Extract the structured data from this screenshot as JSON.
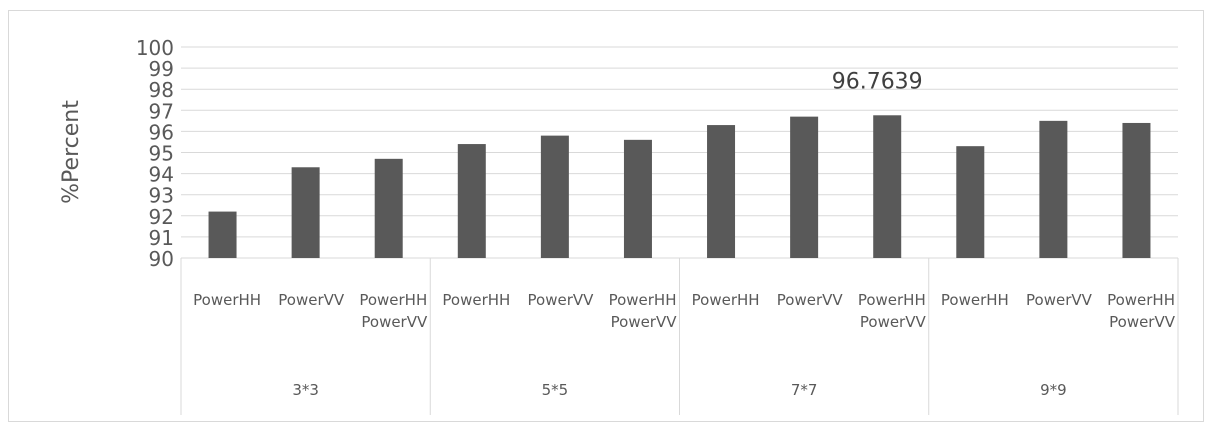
{
  "chart_data": {
    "type": "bar",
    "ylabel": "%Percent",
    "xlabel": "",
    "ylim": [
      90,
      100
    ],
    "yticks": [
      90,
      91,
      92,
      93,
      94,
      95,
      96,
      97,
      98,
      99,
      100
    ],
    "grid": true,
    "groups": [
      {
        "name": "3*3",
        "bars": [
          {
            "label": [
              "PowerHH"
            ],
            "value": 92.2
          },
          {
            "label": [
              "PowerVV"
            ],
            "value": 94.3
          },
          {
            "label": [
              "PowerHH",
              "PowerVV"
            ],
            "value": 94.7
          }
        ]
      },
      {
        "name": "5*5",
        "bars": [
          {
            "label": [
              "PowerHH"
            ],
            "value": 95.4
          },
          {
            "label": [
              "PowerVV"
            ],
            "value": 95.8
          },
          {
            "label": [
              "PowerHH",
              "PowerVV"
            ],
            "value": 95.6
          }
        ]
      },
      {
        "name": "7*7",
        "bars": [
          {
            "label": [
              "PowerHH"
            ],
            "value": 96.3
          },
          {
            "label": [
              "PowerVV"
            ],
            "value": 96.7
          },
          {
            "label": [
              "PowerHH",
              "PowerVV"
            ],
            "value": 96.7639
          }
        ]
      },
      {
        "name": "9*9",
        "bars": [
          {
            "label": [
              "PowerHH"
            ],
            "value": 95.3
          },
          {
            "label": [
              "PowerVV"
            ],
            "value": 96.5
          },
          {
            "label": [
              "PowerHH",
              "PowerVV"
            ],
            "value": 96.4
          }
        ]
      }
    ],
    "annotation": {
      "text": "96.7639",
      "group": 2,
      "bar": 2
    },
    "colors": {
      "bar": "#595959",
      "grid": "#d9d9d9",
      "text": "#595959"
    }
  }
}
